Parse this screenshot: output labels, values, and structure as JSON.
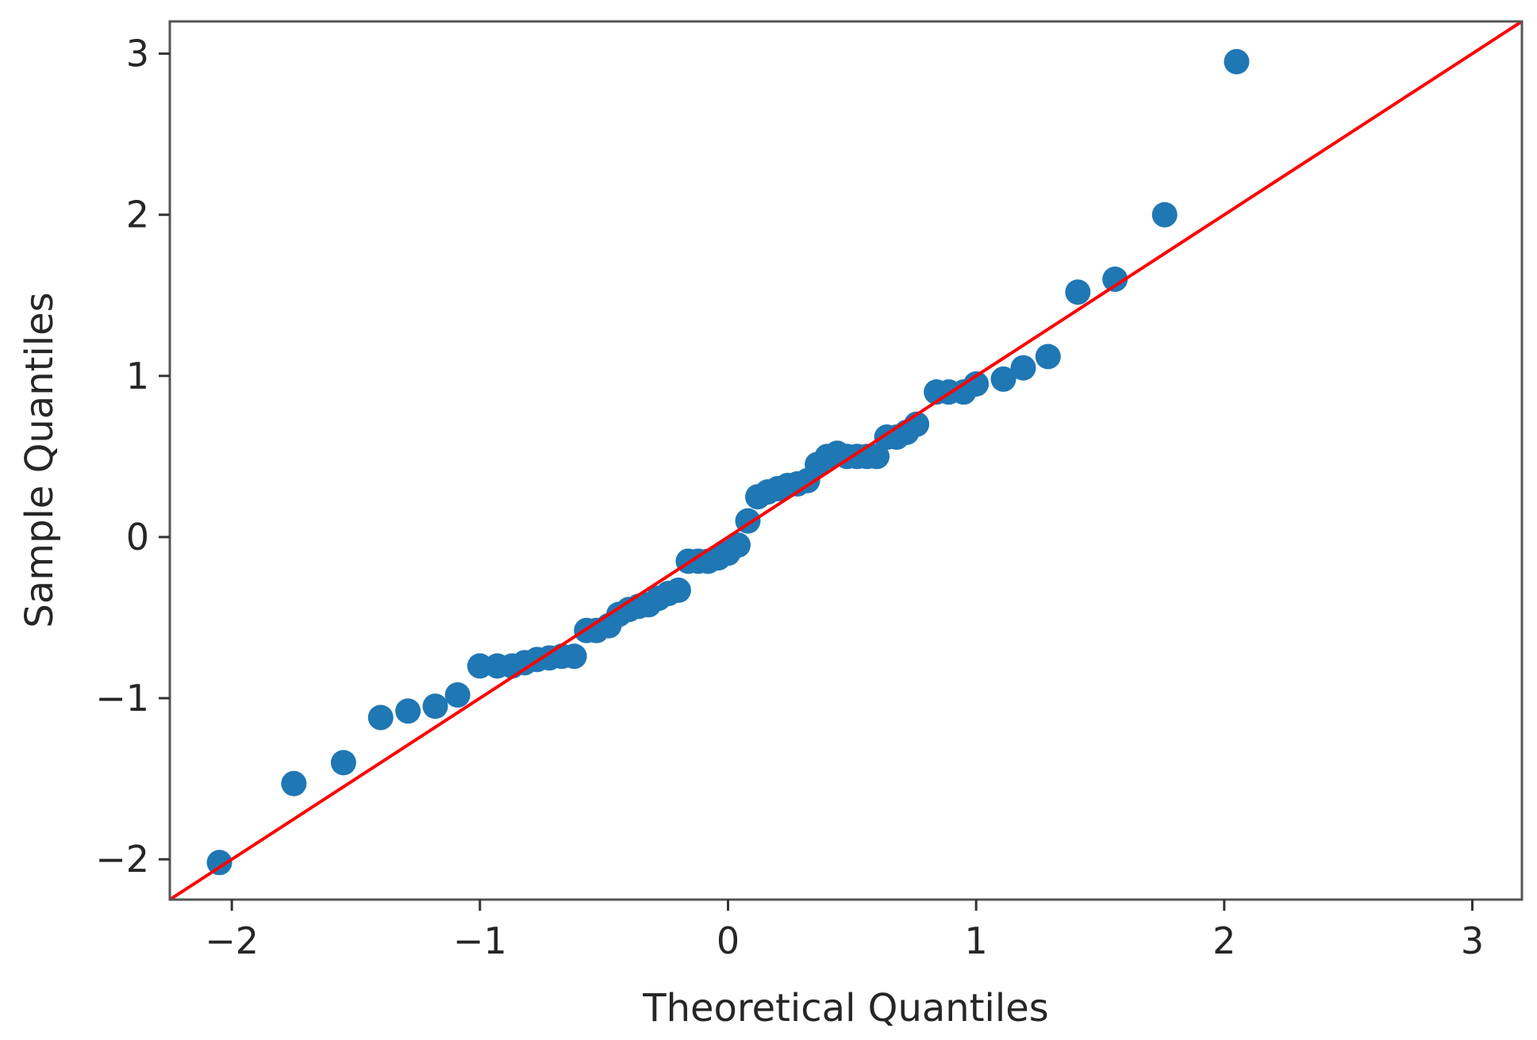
{
  "chart_data": {
    "type": "scatter",
    "title": "",
    "xlabel": "Theoretical Quantiles",
    "ylabel": "Sample Quantiles",
    "xlim": [
      -2.25,
      3.2
    ],
    "ylim": [
      -2.25,
      3.2
    ],
    "x_ticks": [
      -2,
      -1,
      0,
      1,
      2,
      3
    ],
    "y_ticks": [
      -2,
      -1,
      0,
      1,
      2,
      3
    ],
    "x_tick_labels": [
      "−2",
      "−1",
      "0",
      "1",
      "2",
      "3"
    ],
    "y_tick_labels": [
      "−2",
      "−1",
      "0",
      "1",
      "2",
      "3"
    ],
    "grid": false,
    "legend": "none",
    "marker_color": "#1f77b4",
    "line_color": "#ff0000",
    "reference_line": {
      "slope": 1,
      "intercept": 0
    },
    "points": [
      [
        -2.05,
        -2.02
      ],
      [
        -1.75,
        -1.53
      ],
      [
        -1.55,
        -1.4
      ],
      [
        -1.4,
        -1.12
      ],
      [
        -1.29,
        -1.08
      ],
      [
        -1.18,
        -1.05
      ],
      [
        -1.09,
        -0.98
      ],
      [
        -1.0,
        -0.8
      ],
      [
        -0.93,
        -0.8
      ],
      [
        -0.87,
        -0.8
      ],
      [
        -0.82,
        -0.78
      ],
      [
        -0.77,
        -0.76
      ],
      [
        -0.72,
        -0.75
      ],
      [
        -0.67,
        -0.74
      ],
      [
        -0.62,
        -0.74
      ],
      [
        -0.57,
        -0.58
      ],
      [
        -0.53,
        -0.58
      ],
      [
        -0.48,
        -0.55
      ],
      [
        -0.44,
        -0.48
      ],
      [
        -0.4,
        -0.45
      ],
      [
        -0.36,
        -0.43
      ],
      [
        -0.32,
        -0.42
      ],
      [
        -0.28,
        -0.38
      ],
      [
        -0.24,
        -0.35
      ],
      [
        -0.2,
        -0.33
      ],
      [
        -0.16,
        -0.15
      ],
      [
        -0.12,
        -0.15
      ],
      [
        -0.08,
        -0.15
      ],
      [
        -0.04,
        -0.13
      ],
      [
        0.0,
        -0.1
      ],
      [
        0.04,
        -0.05
      ],
      [
        0.08,
        0.1
      ],
      [
        0.12,
        0.25
      ],
      [
        0.16,
        0.28
      ],
      [
        0.2,
        0.3
      ],
      [
        0.24,
        0.32
      ],
      [
        0.28,
        0.33
      ],
      [
        0.32,
        0.35
      ],
      [
        0.36,
        0.45
      ],
      [
        0.4,
        0.5
      ],
      [
        0.44,
        0.52
      ],
      [
        0.48,
        0.5
      ],
      [
        0.52,
        0.5
      ],
      [
        0.56,
        0.5
      ],
      [
        0.6,
        0.5
      ],
      [
        0.64,
        0.62
      ],
      [
        0.68,
        0.62
      ],
      [
        0.72,
        0.65
      ],
      [
        0.76,
        0.7
      ],
      [
        0.84,
        0.9
      ],
      [
        0.89,
        0.9
      ],
      [
        0.95,
        0.9
      ],
      [
        1.0,
        0.95
      ],
      [
        1.11,
        0.98
      ],
      [
        1.19,
        1.05
      ],
      [
        1.29,
        1.12
      ],
      [
        1.41,
        1.52
      ],
      [
        1.56,
        1.6
      ],
      [
        1.76,
        2.0
      ],
      [
        2.05,
        2.95
      ]
    ]
  }
}
